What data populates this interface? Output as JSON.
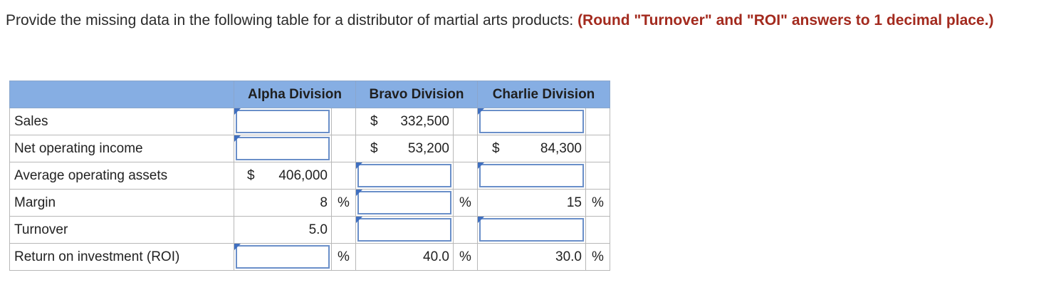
{
  "prompt": {
    "text": "Provide the missing data in the following table for a distributor of martial arts products: ",
    "instruction": "(Round \"Turnover\" and \"ROI\" answers to 1 decimal place.)"
  },
  "table": {
    "headers": [
      "",
      "Alpha Division",
      "Bravo Division",
      "Charlie Division"
    ],
    "rows": [
      {
        "label": "Sales",
        "alpha": "",
        "bravo": "332,500",
        "charlie": ""
      },
      {
        "label": "Net operating income",
        "alpha": "",
        "bravo": "53,200",
        "charlie": "84,300"
      },
      {
        "label": "Average operating assets",
        "alpha": "406,000",
        "bravo": "",
        "charlie": ""
      },
      {
        "label": "Margin",
        "alpha": "8",
        "bravo": "",
        "charlie": "15"
      },
      {
        "label": "Turnover",
        "alpha": "5.0",
        "bravo": "",
        "charlie": ""
      },
      {
        "label": "Return on investment (ROI)",
        "alpha": "",
        "bravo": "40.0",
        "charlie": "30.0"
      }
    ],
    "currency": "$",
    "percent": "%"
  }
}
